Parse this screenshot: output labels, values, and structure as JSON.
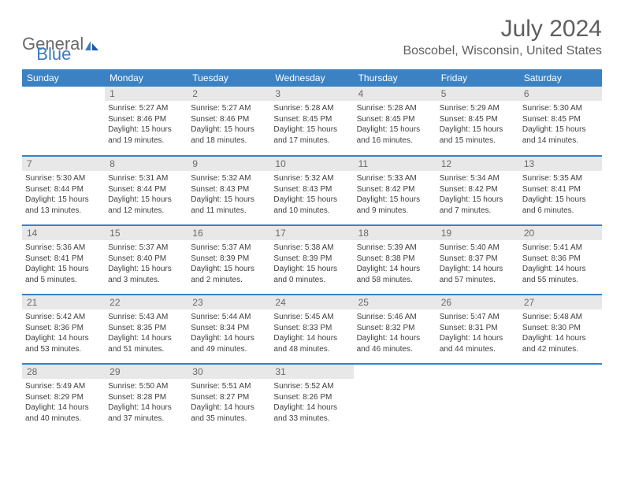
{
  "logo": {
    "word1": "General",
    "word2": "Blue"
  },
  "title": "July 2024",
  "location": "Boscobel, Wisconsin, United States",
  "colors": {
    "header_bg": "#3b82c4",
    "header_text": "#ffffff",
    "daynum_bg": "#e8e8e8",
    "daynum_text": "#6a6a6a",
    "body_text": "#404040",
    "rule": "#3b82c4",
    "logo_gray": "#6a6a6a",
    "logo_blue": "#3b7bbf"
  },
  "day_headers": [
    "Sunday",
    "Monday",
    "Tuesday",
    "Wednesday",
    "Thursday",
    "Friday",
    "Saturday"
  ],
  "weeks": [
    [
      null,
      {
        "n": "1",
        "sr": "5:27 AM",
        "ss": "8:46 PM",
        "dl1": "15 hours",
        "dl2": "and 19 minutes."
      },
      {
        "n": "2",
        "sr": "5:27 AM",
        "ss": "8:46 PM",
        "dl1": "15 hours",
        "dl2": "and 18 minutes."
      },
      {
        "n": "3",
        "sr": "5:28 AM",
        "ss": "8:45 PM",
        "dl1": "15 hours",
        "dl2": "and 17 minutes."
      },
      {
        "n": "4",
        "sr": "5:28 AM",
        "ss": "8:45 PM",
        "dl1": "15 hours",
        "dl2": "and 16 minutes."
      },
      {
        "n": "5",
        "sr": "5:29 AM",
        "ss": "8:45 PM",
        "dl1": "15 hours",
        "dl2": "and 15 minutes."
      },
      {
        "n": "6",
        "sr": "5:30 AM",
        "ss": "8:45 PM",
        "dl1": "15 hours",
        "dl2": "and 14 minutes."
      }
    ],
    [
      {
        "n": "7",
        "sr": "5:30 AM",
        "ss": "8:44 PM",
        "dl1": "15 hours",
        "dl2": "and 13 minutes."
      },
      {
        "n": "8",
        "sr": "5:31 AM",
        "ss": "8:44 PM",
        "dl1": "15 hours",
        "dl2": "and 12 minutes."
      },
      {
        "n": "9",
        "sr": "5:32 AM",
        "ss": "8:43 PM",
        "dl1": "15 hours",
        "dl2": "and 11 minutes."
      },
      {
        "n": "10",
        "sr": "5:32 AM",
        "ss": "8:43 PM",
        "dl1": "15 hours",
        "dl2": "and 10 minutes."
      },
      {
        "n": "11",
        "sr": "5:33 AM",
        "ss": "8:42 PM",
        "dl1": "15 hours",
        "dl2": "and 9 minutes."
      },
      {
        "n": "12",
        "sr": "5:34 AM",
        "ss": "8:42 PM",
        "dl1": "15 hours",
        "dl2": "and 7 minutes."
      },
      {
        "n": "13",
        "sr": "5:35 AM",
        "ss": "8:41 PM",
        "dl1": "15 hours",
        "dl2": "and 6 minutes."
      }
    ],
    [
      {
        "n": "14",
        "sr": "5:36 AM",
        "ss": "8:41 PM",
        "dl1": "15 hours",
        "dl2": "and 5 minutes."
      },
      {
        "n": "15",
        "sr": "5:37 AM",
        "ss": "8:40 PM",
        "dl1": "15 hours",
        "dl2": "and 3 minutes."
      },
      {
        "n": "16",
        "sr": "5:37 AM",
        "ss": "8:39 PM",
        "dl1": "15 hours",
        "dl2": "and 2 minutes."
      },
      {
        "n": "17",
        "sr": "5:38 AM",
        "ss": "8:39 PM",
        "dl1": "15 hours",
        "dl2": "and 0 minutes."
      },
      {
        "n": "18",
        "sr": "5:39 AM",
        "ss": "8:38 PM",
        "dl1": "14 hours",
        "dl2": "and 58 minutes."
      },
      {
        "n": "19",
        "sr": "5:40 AM",
        "ss": "8:37 PM",
        "dl1": "14 hours",
        "dl2": "and 57 minutes."
      },
      {
        "n": "20",
        "sr": "5:41 AM",
        "ss": "8:36 PM",
        "dl1": "14 hours",
        "dl2": "and 55 minutes."
      }
    ],
    [
      {
        "n": "21",
        "sr": "5:42 AM",
        "ss": "8:36 PM",
        "dl1": "14 hours",
        "dl2": "and 53 minutes."
      },
      {
        "n": "22",
        "sr": "5:43 AM",
        "ss": "8:35 PM",
        "dl1": "14 hours",
        "dl2": "and 51 minutes."
      },
      {
        "n": "23",
        "sr": "5:44 AM",
        "ss": "8:34 PM",
        "dl1": "14 hours",
        "dl2": "and 49 minutes."
      },
      {
        "n": "24",
        "sr": "5:45 AM",
        "ss": "8:33 PM",
        "dl1": "14 hours",
        "dl2": "and 48 minutes."
      },
      {
        "n": "25",
        "sr": "5:46 AM",
        "ss": "8:32 PM",
        "dl1": "14 hours",
        "dl2": "and 46 minutes."
      },
      {
        "n": "26",
        "sr": "5:47 AM",
        "ss": "8:31 PM",
        "dl1": "14 hours",
        "dl2": "and 44 minutes."
      },
      {
        "n": "27",
        "sr": "5:48 AM",
        "ss": "8:30 PM",
        "dl1": "14 hours",
        "dl2": "and 42 minutes."
      }
    ],
    [
      {
        "n": "28",
        "sr": "5:49 AM",
        "ss": "8:29 PM",
        "dl1": "14 hours",
        "dl2": "and 40 minutes."
      },
      {
        "n": "29",
        "sr": "5:50 AM",
        "ss": "8:28 PM",
        "dl1": "14 hours",
        "dl2": "and 37 minutes."
      },
      {
        "n": "30",
        "sr": "5:51 AM",
        "ss": "8:27 PM",
        "dl1": "14 hours",
        "dl2": "and 35 minutes."
      },
      {
        "n": "31",
        "sr": "5:52 AM",
        "ss": "8:26 PM",
        "dl1": "14 hours",
        "dl2": "and 33 minutes."
      },
      null,
      null,
      null
    ]
  ],
  "labels": {
    "sunrise": "Sunrise:",
    "sunset": "Sunset:",
    "daylight": "Daylight:"
  }
}
